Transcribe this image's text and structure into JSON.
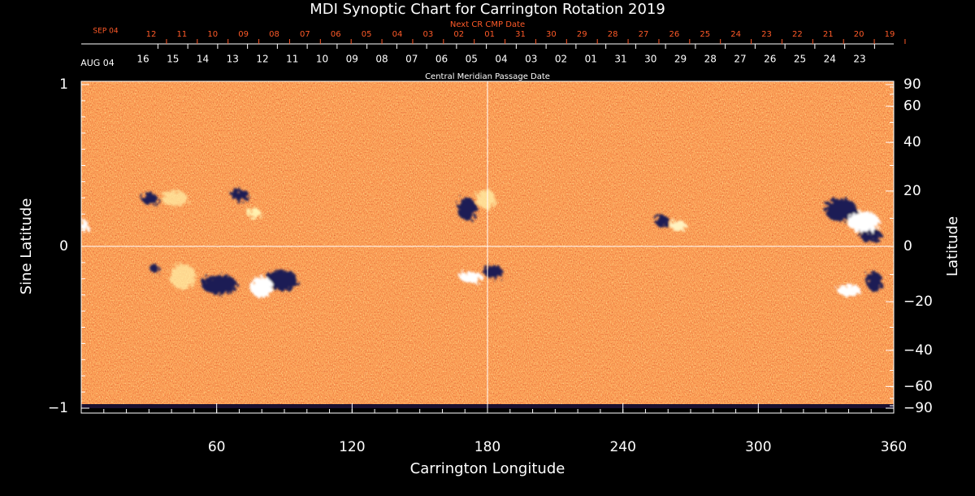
{
  "chart_data": {
    "type": "image",
    "title": "MDI Synoptic Chart for Carrington Rotation 2019",
    "x_label": "Carrington Longitude",
    "y_label": "Sine Latitude",
    "y2_label": "Latitude",
    "xlim": [
      0,
      360
    ],
    "xticks": [
      60,
      120,
      180,
      240,
      300,
      360
    ],
    "ylim": [
      -1,
      1
    ],
    "yticks": [
      {
        "value": -1,
        "label": "−1"
      },
      0,
      1
    ],
    "y2lim": [
      -90,
      90
    ],
    "y2scale": "sine",
    "y2ticks": [
      {
        "value": -90,
        "label": "−90"
      },
      {
        "value": -60,
        "label": "−60"
      },
      {
        "value": -40,
        "label": "−40"
      },
      {
        "value": -20,
        "label": "−20"
      },
      0,
      20,
      40,
      60,
      90
    ],
    "top_axes": [
      {
        "label": "Next CR CMP Date",
        "start_label": "SEP 04",
        "color": "#ff5a28",
        "categories": [
          "12",
          "11",
          "10",
          "09",
          "08",
          "07",
          "06",
          "05",
          "04",
          "03",
          "02",
          "01",
          "31",
          "30",
          "29",
          "28",
          "27",
          "26",
          "25",
          "24",
          "23",
          "22",
          "21",
          "20",
          "19"
        ]
      },
      {
        "label": "Central Meridian Passage Date",
        "start_label": "AUG 04",
        "color": "#ffffff",
        "categories": [
          "16",
          "15",
          "14",
          "13",
          "12",
          "11",
          "10",
          "09",
          "08",
          "07",
          "06",
          "05",
          "04",
          "03",
          "02",
          "01",
          "31",
          "30",
          "29",
          "28",
          "27",
          "26",
          "25",
          "24",
          "23"
        ]
      }
    ]
  }
}
